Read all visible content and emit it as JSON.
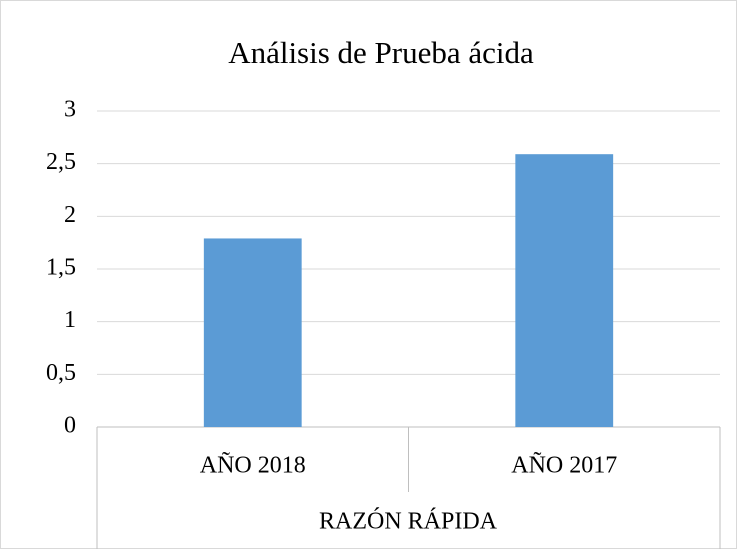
{
  "chart_data": {
    "type": "bar",
    "title": "Análisis de Prueba ácida",
    "categories": [
      "AÑO 2018",
      "AÑO 2017"
    ],
    "values": [
      1.79,
      2.59
    ],
    "color": "#5b9bd5",
    "xlabel": "RAZÓN RÁPIDA",
    "ylim": [
      0,
      3
    ],
    "yticks": [
      0,
      {
        "value": 0.5,
        "label": "0,5"
      },
      1,
      {
        "value": 1.5,
        "label": "1,5"
      },
      2,
      {
        "value": 2.5,
        "label": "2,5"
      },
      3
    ],
    "grid": true
  }
}
